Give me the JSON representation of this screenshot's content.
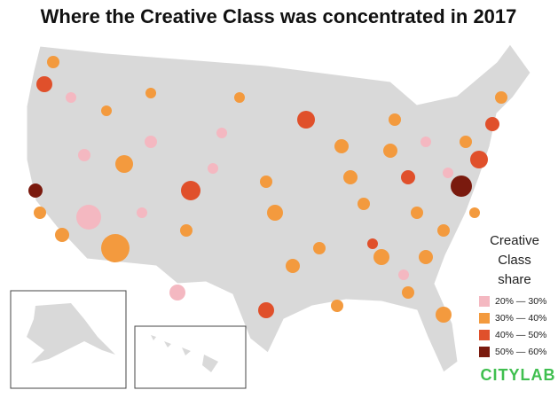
{
  "title": "Where the Creative Class was concentrated in 2017",
  "legend": {
    "title": [
      "Creative",
      "Class",
      "share"
    ],
    "items": [
      {
        "label": "20% — 30%",
        "color": "#f4b8c1"
      },
      {
        "label": "30% — 40%",
        "color": "#f39a3e"
      },
      {
        "label": "40% — 50%",
        "color": "#e0502b"
      },
      {
        "label": "50% — 60%",
        "color": "#7a1a0e"
      }
    ]
  },
  "brand": "CITYLAB"
}
